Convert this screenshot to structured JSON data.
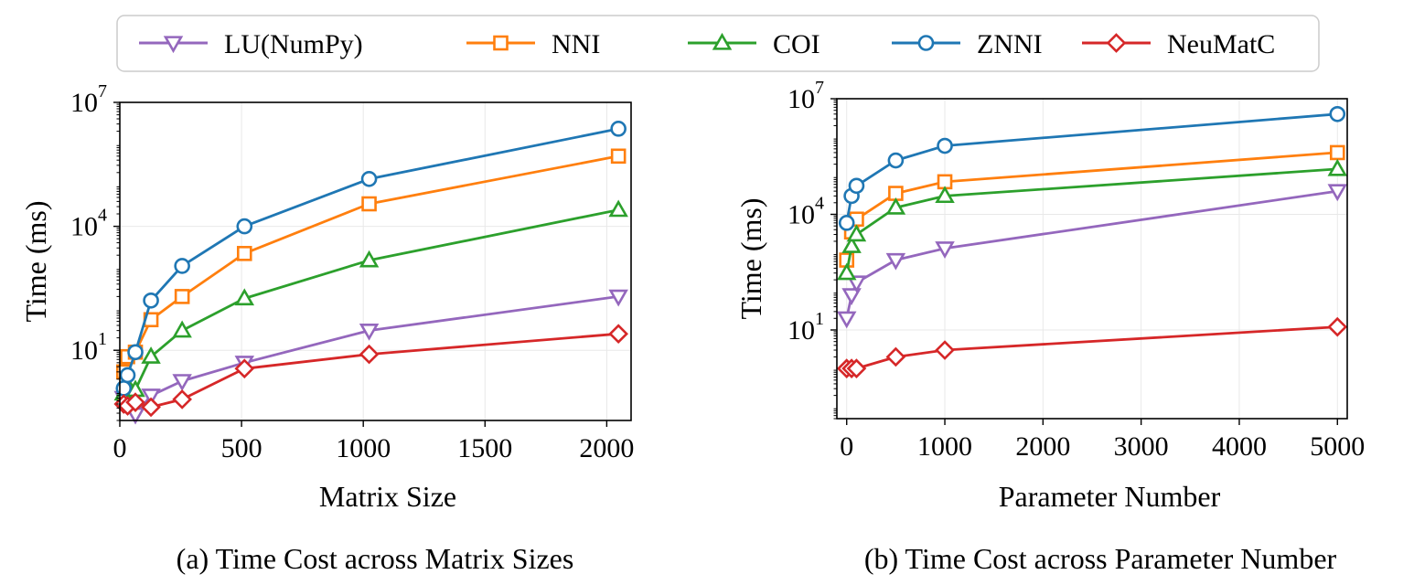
{
  "legend": {
    "items": [
      {
        "label": "LU(NumPy)",
        "color": "#9467bd",
        "marker": "triangle-down-icon"
      },
      {
        "label": "NNI",
        "color": "#ff7f0e",
        "marker": "square-icon"
      },
      {
        "label": "COI",
        "color": "#2ca02c",
        "marker": "triangle-up-icon"
      },
      {
        "label": "ZNNI",
        "color": "#1f77b4",
        "marker": "circle-icon"
      },
      {
        "label": "NeuMatC",
        "color": "#d62728",
        "marker": "diamond-icon"
      }
    ]
  },
  "chart_data": [
    {
      "type": "line",
      "caption": "(a) Time Cost across Matrix Sizes",
      "xlabel": "Matrix Size",
      "ylabel": "Time (ms)",
      "yscale": "log",
      "xlim": [
        0,
        2100
      ],
      "ylim": [
        0.2,
        10000000
      ],
      "xticks": [
        0,
        500,
        1000,
        1500,
        2000
      ],
      "yticks": [
        10,
        10000,
        10000000
      ],
      "ytick_labels": [
        {
          "base": "10",
          "exp": "1"
        },
        {
          "base": "10",
          "exp": "4"
        },
        {
          "base": "10",
          "exp": "7"
        }
      ],
      "grid": true,
      "series": [
        {
          "name": "LU(NumPy)",
          "x": [
            16,
            32,
            64,
            128,
            256,
            512,
            1024,
            2048
          ],
          "y": [
            0.7,
            0.55,
            0.28,
            0.8,
            1.8,
            5,
            30,
            200
          ]
        },
        {
          "name": "NNI",
          "x": [
            16,
            32,
            64,
            128,
            256,
            512,
            1024,
            2048
          ],
          "y": [
            3,
            7,
            9,
            55,
            200,
            2200,
            35000,
            500000
          ]
        },
        {
          "name": "COI",
          "x": [
            16,
            32,
            64,
            128,
            256,
            512,
            1024,
            2048
          ],
          "y": [
            0.9,
            1.4,
            1.1,
            7,
            30,
            180,
            1500,
            25000
          ]
        },
        {
          "name": "ZNNI",
          "x": [
            16,
            32,
            64,
            128,
            256,
            512,
            1024,
            2048
          ],
          "y": [
            1.2,
            2.5,
            9,
            160,
            1100,
            10000,
            140000,
            2300000
          ]
        },
        {
          "name": "NeuMatC",
          "x": [
            16,
            32,
            64,
            128,
            256,
            512,
            1024,
            2048
          ],
          "y": [
            0.5,
            0.45,
            0.55,
            0.42,
            0.65,
            3.6,
            8,
            25
          ]
        }
      ]
    },
    {
      "type": "line",
      "caption": "(b) Time Cost across Parameter Number",
      "xlabel": "Parameter Number",
      "ylabel": "Time (ms)",
      "yscale": "log",
      "xlim": [
        -100,
        5100
      ],
      "ylim": [
        0.05,
        10000000
      ],
      "xticks": [
        0,
        1000,
        2000,
        3000,
        4000,
        5000
      ],
      "yticks": [
        10,
        10000,
        10000000
      ],
      "ytick_labels": [
        {
          "base": "10",
          "exp": "1"
        },
        {
          "base": "10",
          "exp": "4"
        },
        {
          "base": "10",
          "exp": "7"
        }
      ],
      "grid": true,
      "series": [
        {
          "name": "LU(NumPy)",
          "x": [
            0,
            50,
            100,
            500,
            1000,
            5000
          ],
          "y": [
            20,
            80,
            170,
            650,
            1300,
            40000
          ]
        },
        {
          "name": "NNI",
          "x": [
            0,
            50,
            100,
            500,
            1000,
            5000
          ],
          "y": [
            650,
            3500,
            7500,
            35000,
            70000,
            400000
          ]
        },
        {
          "name": "COI",
          "x": [
            0,
            50,
            100,
            500,
            1000,
            5000
          ],
          "y": [
            300,
            1500,
            3000,
            15000,
            30000,
            150000
          ]
        },
        {
          "name": "ZNNI",
          "x": [
            0,
            50,
            100,
            500,
            1000,
            5000
          ],
          "y": [
            6000,
            30000,
            55000,
            250000,
            600000,
            4000000
          ]
        },
        {
          "name": "NeuMatC",
          "x": [
            0,
            50,
            100,
            500,
            1000,
            5000
          ],
          "y": [
            1,
            1,
            1,
            2,
            3,
            12
          ]
        }
      ]
    }
  ]
}
